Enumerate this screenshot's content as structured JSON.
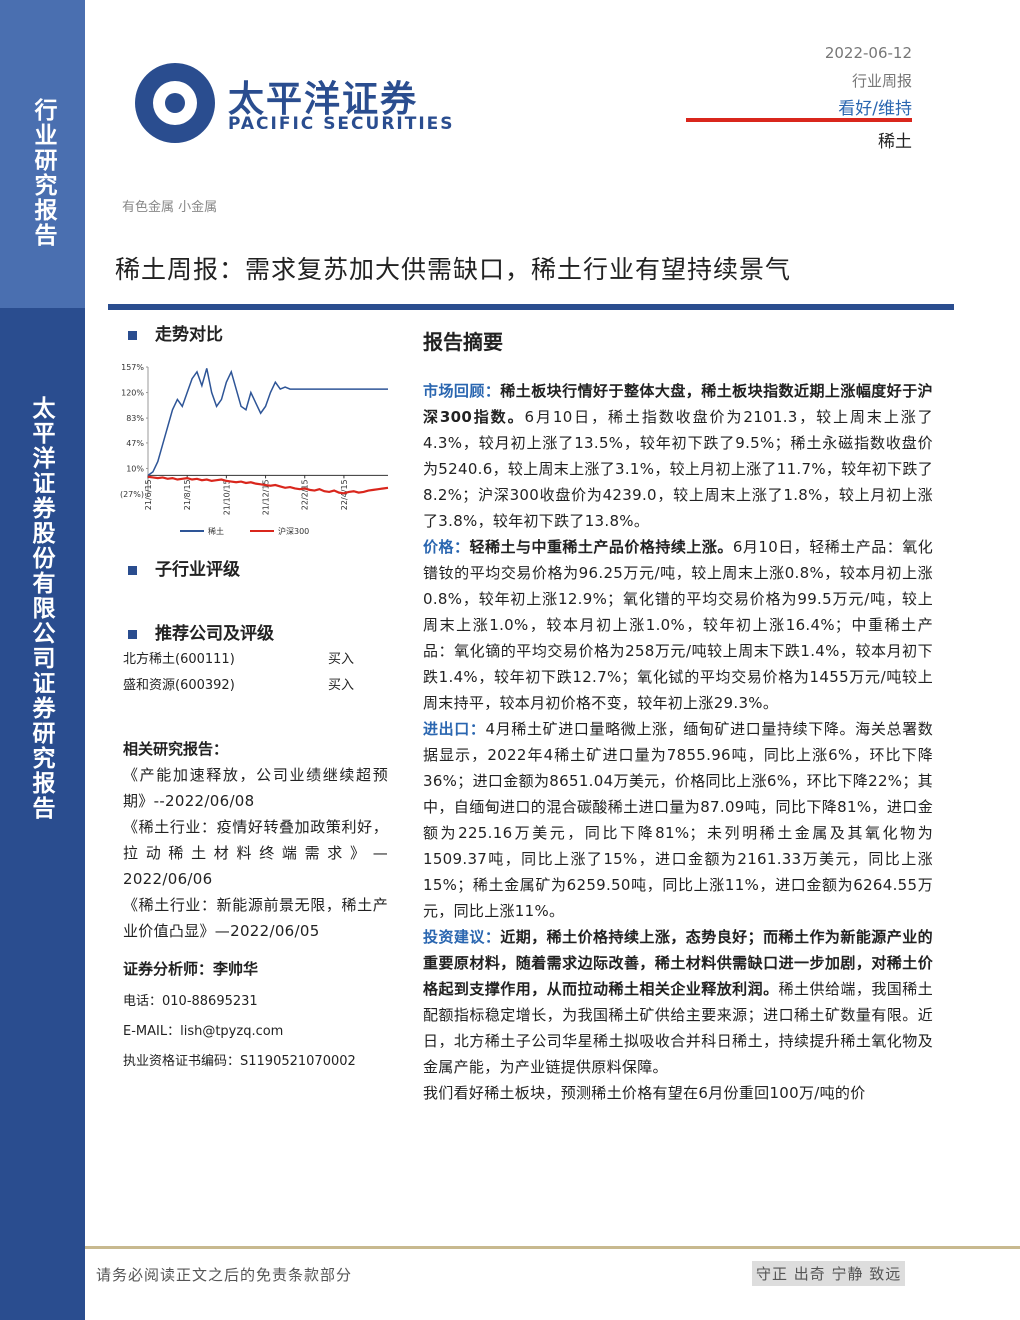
{
  "sidebar": {
    "top": "行业研究报告",
    "bottom": "太平洋证券股份有限公司证券研究报告"
  },
  "header": {
    "logo_cn": "太平洋证券",
    "logo_en": "PACIFIC SECURITIES",
    "date": "2022-06-12",
    "report_type": "行业周报",
    "rating": "看好/维持",
    "industry": "稀土"
  },
  "breadcrumb": "有色金属 小金属",
  "title": "稀土周报：需求复苏加大供需缺口，稀土行业有望持续景气",
  "left": {
    "trend_heading": "走势对比",
    "chart": {
      "type": "line",
      "xlim": [
        0,
        49
      ],
      "ylim": [
        -27,
        157
      ],
      "yticks": [
        {
          "value": 157,
          "label": "157%"
        },
        {
          "value": 120,
          "label": "120%"
        },
        {
          "value": 83,
          "label": "83%"
        },
        {
          "value": 47,
          "label": "47%"
        },
        {
          "value": 10,
          "label": "10%"
        },
        {
          "value": -27,
          "label": "(27%)"
        }
      ],
      "xticks": [
        {
          "value": 0,
          "label": "21/6/15"
        },
        {
          "value": 8,
          "label": "21/8/15"
        },
        {
          "value": 16,
          "label": "21/10/15"
        },
        {
          "value": 24,
          "label": "21/12/15"
        },
        {
          "value": 32,
          "label": "22/2/15"
        },
        {
          "value": 40,
          "label": "22/4/15"
        }
      ],
      "series": [
        {
          "name": "稀土",
          "color": "#2e5597",
          "values": [
            0,
            5,
            20,
            45,
            70,
            95,
            110,
            100,
            120,
            140,
            150,
            130,
            155,
            120,
            100,
            110,
            135,
            150,
            125,
            100,
            95,
            120,
            105,
            90,
            100,
            120,
            135,
            125,
            128,
            125,
            125,
            125,
            125,
            125,
            125,
            125,
            125,
            125,
            125,
            125,
            125,
            125,
            125,
            125,
            125,
            125,
            125,
            125,
            125,
            125
          ]
        },
        {
          "name": "沪深300",
          "color": "#d9261c",
          "values": [
            -2,
            -3,
            -4,
            -3,
            -5,
            -4,
            -6,
            -5,
            -4,
            -6,
            -5,
            -7,
            -6,
            -8,
            -7,
            -6,
            -8,
            -9,
            -10,
            -9,
            -11,
            -10,
            -12,
            -13,
            -14,
            -15,
            -14,
            -16,
            -18,
            -17,
            -19,
            -20,
            -19,
            -21,
            -22,
            -20,
            -23,
            -24,
            -22,
            -25,
            -26,
            -24,
            -23,
            -25,
            -24,
            -22,
            -21,
            -20,
            -19,
            -18
          ]
        }
      ]
    },
    "sub_heading": "子行业评级",
    "rec_heading": "推荐公司及评级",
    "recs": [
      [
        "北方稀土(600111)",
        "买入"
      ],
      [
        "盛和资源(600392)",
        "买入"
      ]
    ],
    "related_heading": "相关研究报告：",
    "related": [
      "《产能加速释放，公司业绩继续超预期》--2022/06/08",
      "《稀土行业：疫情好转叠加政策利好，拉动稀土材料终端需求》—2022/06/06",
      "《稀土行业：新能源前景无限，稀土产业价值凸显》—2022/06/05"
    ],
    "analyst": "证券分析师：李帅华",
    "phone": "电话：010-88695231",
    "email": "E-MAIL：lish@tpyzq.com",
    "cert": "执业资格证书编码：S1190521070002"
  },
  "summary": {
    "heading": "报告摘要",
    "paragraphs": [
      {
        "lead": "市场回顾：",
        "highlight": "稀土板块行情好于整体大盘，稀土板块指数近期上涨幅度好于沪深300指数。",
        "body": "6月10日，稀土指数收盘价为2101.3，较上周末上涨了4.3%，较月初上涨了13.5%，较年初下跌了9.5%；稀土永磁指数收盘价为5240.6，较上周末上涨了3.1%，较上月初上涨了11.7%，较年初下跌了8.2%；沪深300收盘价为4239.0，较上周末上涨了1.8%，较上月初上涨了3.8%，较年初下跌了13.8%。"
      },
      {
        "lead": "价格：",
        "highlight": "轻稀土与中重稀土产品价格持续上涨。",
        "body": "6月10日，轻稀土产品：氧化镨钕的平均交易价格为96.25万元/吨，较上周末上涨0.8%，较本月初上涨0.8%，较年初上涨12.9%；氧化镨的平均交易价格为99.5万元/吨，较上周末上涨1.0%，较本月初上涨1.0%，较年初上涨16.4%；中重稀土产品：氧化镝的平均交易价格为258万元/吨较上周末下跌1.4%，较本月初下跌1.4%，较年初下跌12.7%；氧化铽的平均交易价格为1455万元/吨较上周末持平，较本月初价格不变，较年初上涨29.3%。"
      },
      {
        "lead": "进出口：",
        "highlight": "",
        "body": "4月稀土矿进口量略微上涨，缅甸矿进口量持续下降。海关总署数据显示，2022年4稀土矿进口量为7855.96吨，同比上涨6%，环比下降36%；进口金额为8651.04万美元，价格同比上涨6%，环比下降22%；其中，自缅甸进口的混合碳酸稀土进口量为87.09吨，同比下降81%，进口金额为225.16万美元，同比下降81%；未列明稀土金属及其氧化物为1509.37吨，同比上涨了15%，进口金额为2161.33万美元，同比上涨15%；稀土金属矿为6259.50吨，同比上涨11%，进口金额为6264.55万元，同比上涨11%。"
      },
      {
        "lead": "投资建议：",
        "highlight": "近期，稀土价格持续上涨，态势良好；而稀土作为新能源产业的重要原材料，随着需求边际改善，稀土材料供需缺口进一步加剧，对稀土价格起到支撑作用，从而拉动稀土相关企业释放利润。",
        "body": "稀土供给端，我国稀土配额指标稳定增长，为我国稀土矿供给主要来源；进口稀土矿数量有限。近日，北方稀土子公司华星稀土拟吸收合并科日稀土，持续提升稀土氧化物及金属产能，为产业链提供原料保障。"
      },
      {
        "lead": "",
        "highlight": "",
        "body": "我们看好稀土板块，预测稀土价格有望在6月份重回100万/吨的价"
      }
    ]
  },
  "footer": {
    "disclaimer": "请务必阅读正文之后的免责条款部分",
    "motto": "守正 出奇 宁静 致远"
  }
}
